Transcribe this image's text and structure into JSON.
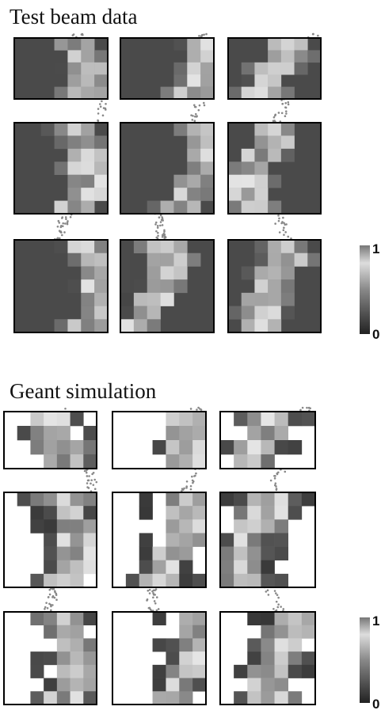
{
  "sections": [
    {
      "title": "Test beam data",
      "colorbar": {
        "max_label": "1",
        "min_label": "0"
      }
    },
    {
      "title": "Geant simulation",
      "colorbar": {
        "max_label": "1",
        "min_label": "0"
      }
    }
  ]
}
